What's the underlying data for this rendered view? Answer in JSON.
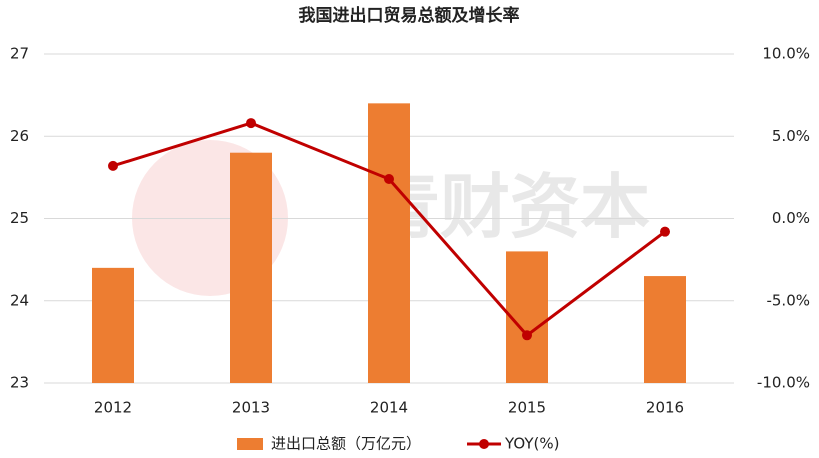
{
  "chart_data": {
    "type": "bar-line",
    "title": "我国进出口贸易总额及增长率",
    "watermark": "青财资本",
    "categories": [
      "2012",
      "2013",
      "2014",
      "2015",
      "2016"
    ],
    "series": [
      {
        "name": "进出口总额（万亿元）",
        "type": "bar",
        "color": "#ed7d31",
        "values": [
          24.4,
          25.8,
          26.4,
          24.6,
          24.3
        ]
      },
      {
        "name": "YOY(%)",
        "type": "line",
        "axis": "y2",
        "color": "#c00000",
        "values": [
          3.2,
          5.8,
          2.4,
          -7.1,
          -0.8
        ]
      }
    ],
    "ylim": [
      23,
      27
    ],
    "yticks": [
      23,
      24,
      25,
      26,
      27
    ],
    "y2lim": [
      -10,
      10
    ],
    "y2ticks": [
      {
        "value": -10,
        "label": "-10.0%"
      },
      {
        "value": -5,
        "label": "-5.0%"
      },
      {
        "value": 0,
        "label": "0.0%"
      },
      {
        "value": 5,
        "label": "5.0%"
      },
      {
        "value": 10,
        "label": "10.0%"
      }
    ],
    "grid": true,
    "legend": "bottom"
  }
}
